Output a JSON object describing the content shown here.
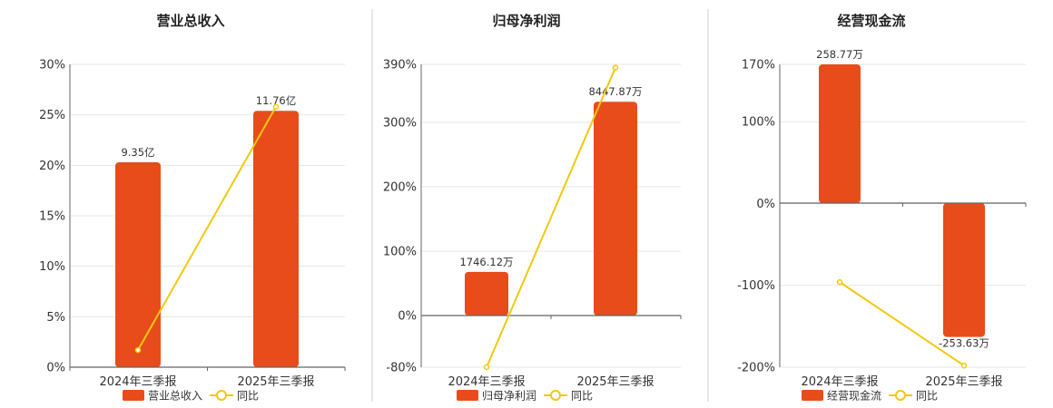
{
  "colors": {
    "bar": "#e84c1b",
    "line": "#f2c811",
    "grid": "#e6e6e6",
    "axis": "#666666",
    "divider": "#cccccc"
  },
  "chart_data": [
    {
      "type": "bar",
      "title": "营业总收入",
      "categories": [
        "2024年三季报",
        "2025年三季报"
      ],
      "yticks": [
        "30%",
        "25%",
        "20%",
        "15%",
        "10%",
        "5%",
        "0%"
      ],
      "ylim": [
        0,
        30
      ],
      "series": [
        {
          "name": "营业总收入",
          "kind": "bar",
          "values": [
            20.3,
            25.4
          ],
          "labels": [
            "9.35亿",
            "11.76亿"
          ]
        },
        {
          "name": "同比",
          "kind": "line",
          "values": [
            1.7,
            25.8
          ]
        }
      ]
    },
    {
      "type": "bar",
      "title": "归母净利润",
      "categories": [
        "2024年三季报",
        "2025年三季报"
      ],
      "yticks": [
        "390%",
        "300%",
        "200%",
        "100%",
        "0%",
        "-80%"
      ],
      "ylim": [
        -80,
        390
      ],
      "series": [
        {
          "name": "归母净利润",
          "kind": "bar",
          "values": [
            68,
            332
          ],
          "labels": [
            "1746.12万",
            "8447.87万"
          ]
        },
        {
          "name": "同比",
          "kind": "line",
          "values": [
            -80,
            385
          ]
        }
      ]
    },
    {
      "type": "bar",
      "title": "经营现金流",
      "categories": [
        "2024年三季报",
        "2025年三季报"
      ],
      "yticks": [
        "170%",
        "100%",
        "0%",
        "-100%",
        "-200%"
      ],
      "ylim": [
        -200,
        170
      ],
      "series": [
        {
          "name": "经营现金流",
          "kind": "bar",
          "values": [
            170,
            -163
          ],
          "labels": [
            "258.77万",
            "-253.63万"
          ]
        },
        {
          "name": "同比",
          "kind": "line",
          "values": [
            -96,
            -198
          ]
        }
      ]
    }
  ]
}
